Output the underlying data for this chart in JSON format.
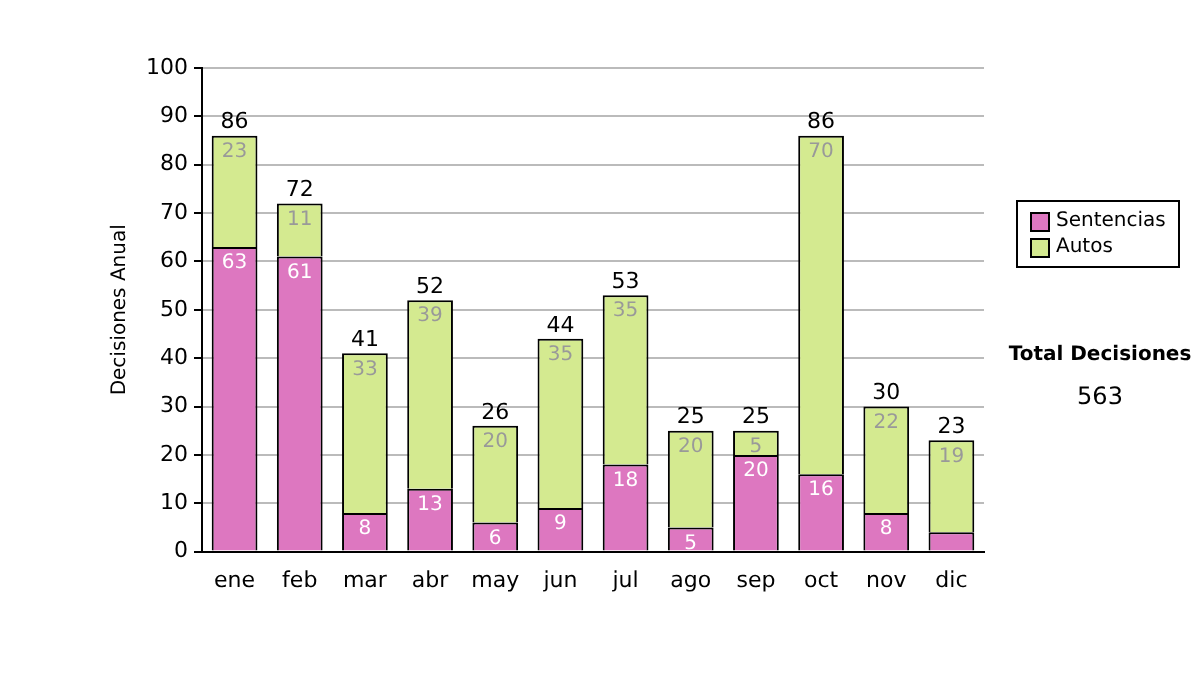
{
  "chart_data": {
    "type": "bar",
    "stacked": true,
    "ylabel": "Decisiones Anual",
    "categories": [
      "ene",
      "feb",
      "mar",
      "abr",
      "may",
      "jun",
      "jul",
      "ago",
      "sep",
      "oct",
      "nov",
      "dic"
    ],
    "series": [
      {
        "name": "Sentencias",
        "color": "#dd77c0",
        "values": [
          63,
          61,
          8,
          13,
          6,
          9,
          18,
          5,
          20,
          16,
          8,
          4
        ],
        "value_labels": [
          "63",
          "61",
          "8",
          "13",
          "6",
          "9",
          "18",
          "5",
          "20",
          "16",
          "8",
          null
        ]
      },
      {
        "name": "Autos",
        "color": "#d4ea90",
        "values": [
          23,
          11,
          33,
          39,
          20,
          35,
          35,
          20,
          5,
          70,
          22,
          19
        ],
        "value_labels": [
          "23",
          "11",
          "33",
          "39",
          "20",
          "35",
          "35",
          "20",
          "5",
          "70",
          "22",
          "19"
        ]
      }
    ],
    "totals": [
      "86",
      "72",
      "41",
      "52",
      "26",
      "44",
      "53",
      "25",
      "25",
      "86",
      "30",
      "23"
    ],
    "ylim": [
      0,
      100
    ],
    "yticks": [
      0,
      10,
      20,
      30,
      40,
      50,
      60,
      70,
      80,
      90,
      100
    ],
    "grid": "y",
    "legend": "right",
    "annotations": [
      "Total Decisiones",
      "563"
    ]
  }
}
